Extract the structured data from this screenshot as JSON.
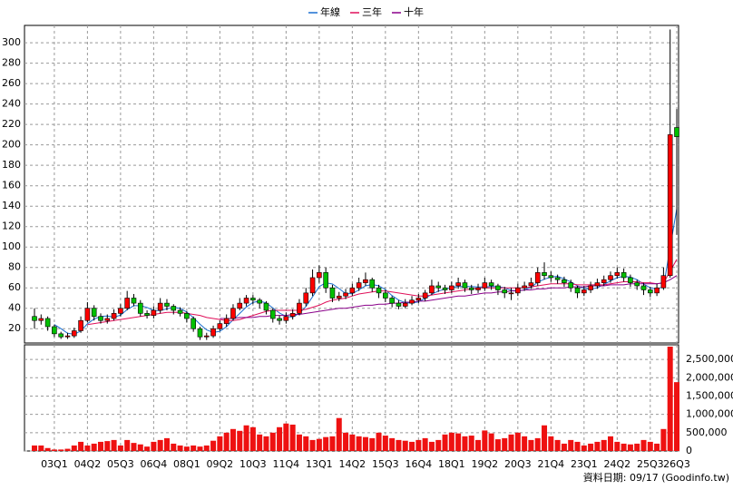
{
  "chart_data": {
    "type": "candlestick",
    "categories": [
      null,
      null,
      null,
      "03Q1",
      null,
      null,
      null,
      null,
      "04Q2",
      null,
      null,
      null,
      null,
      "05Q3",
      null,
      null,
      null,
      null,
      "06Q4",
      null,
      null,
      null,
      null,
      "08Q1",
      null,
      null,
      null,
      null,
      "09Q2",
      null,
      null,
      null,
      null,
      "10Q3",
      null,
      null,
      null,
      null,
      "11Q4",
      null,
      null,
      null,
      null,
      "13Q1",
      null,
      null,
      null,
      null,
      "14Q2",
      null,
      null,
      null,
      null,
      "15Q3",
      null,
      null,
      null,
      null,
      "16Q4",
      null,
      null,
      null,
      null,
      "18Q1",
      null,
      null,
      null,
      null,
      "19Q2",
      null,
      null,
      null,
      null,
      "20Q3",
      null,
      null,
      null,
      null,
      "21Q4",
      null,
      null,
      null,
      null,
      "23Q1",
      null,
      null,
      null,
      null,
      "24Q2",
      null,
      null,
      null,
      null,
      "25Q3",
      null,
      null,
      null,
      "26Q3"
    ],
    "open": [
      32,
      28,
      30,
      22,
      15,
      12,
      13,
      18,
      28,
      40,
      32,
      28,
      30,
      35,
      40,
      50,
      45,
      35,
      33,
      38,
      45,
      42,
      38,
      35,
      30,
      20,
      12,
      13,
      20,
      25,
      30,
      40,
      45,
      50,
      48,
      45,
      38,
      30,
      28,
      32,
      35,
      45,
      55,
      70,
      75,
      60,
      50,
      52,
      55,
      60,
      65,
      68,
      60,
      55,
      50,
      45,
      42,
      45,
      48,
      50,
      55,
      62,
      60,
      58,
      62,
      65,
      60,
      58,
      60,
      65,
      62,
      58,
      55,
      55,
      60,
      62,
      65,
      75,
      72,
      70,
      68,
      65,
      60,
      55,
      58,
      62,
      65,
      68,
      72,
      75,
      70,
      65,
      62,
      58,
      55,
      60,
      72,
      217
    ],
    "high": [
      40,
      34,
      32,
      24,
      17,
      16,
      21,
      32,
      46,
      43,
      35,
      34,
      39,
      44,
      57,
      54,
      48,
      38,
      42,
      50,
      49,
      44,
      41,
      37,
      32,
      22,
      16,
      23,
      28,
      34,
      44,
      50,
      53,
      53,
      50,
      47,
      40,
      33,
      36,
      39,
      49,
      60,
      78,
      82,
      80,
      63,
      56,
      59,
      64,
      70,
      75,
      70,
      63,
      58,
      52,
      48,
      49,
      52,
      54,
      58,
      68,
      66,
      63,
      66,
      70,
      68,
      63,
      64,
      70,
      68,
      64,
      61,
      60,
      64,
      66,
      70,
      80,
      85,
      76,
      73,
      71,
      68,
      62,
      62,
      66,
      69,
      72,
      76,
      80,
      79,
      73,
      68,
      65,
      61,
      64,
      80,
      313,
      235
    ],
    "low": [
      20,
      24,
      18,
      12,
      10,
      10,
      11,
      16,
      26,
      28,
      25,
      25,
      28,
      32,
      38,
      42,
      32,
      30,
      30,
      35,
      38,
      34,
      32,
      26,
      17,
      9,
      9,
      11,
      18,
      22,
      28,
      38,
      42,
      44,
      40,
      34,
      26,
      24,
      25,
      29,
      33,
      42,
      52,
      65,
      55,
      46,
      47,
      49,
      52,
      57,
      62,
      56,
      50,
      46,
      41,
      39,
      40,
      43,
      45,
      47,
      53,
      56,
      54,
      55,
      59,
      56,
      54,
      55,
      57,
      58,
      53,
      50,
      48,
      52,
      57,
      59,
      62,
      68,
      66,
      64,
      61,
      56,
      50,
      52,
      55,
      59,
      62,
      65,
      69,
      66,
      61,
      58,
      53,
      51,
      52,
      58,
      70,
      112
    ],
    "close": [
      28,
      30,
      22,
      15,
      12,
      13,
      18,
      28,
      40,
      32,
      28,
      30,
      35,
      40,
      50,
      45,
      35,
      33,
      38,
      45,
      42,
      38,
      35,
      30,
      20,
      12,
      13,
      20,
      25,
      30,
      40,
      45,
      50,
      48,
      45,
      38,
      30,
      28,
      32,
      35,
      45,
      55,
      70,
      75,
      60,
      50,
      52,
      55,
      60,
      65,
      68,
      60,
      55,
      50,
      45,
      42,
      45,
      48,
      50,
      55,
      62,
      60,
      58,
      62,
      65,
      60,
      58,
      60,
      65,
      62,
      58,
      55,
      55,
      60,
      62,
      65,
      75,
      72,
      70,
      68,
      65,
      60,
      55,
      58,
      62,
      65,
      68,
      72,
      75,
      70,
      65,
      62,
      58,
      55,
      60,
      72,
      210,
      208
    ],
    "up_color": "#ff0000",
    "down_color": "#00c000",
    "ylim": [
      6,
      317
    ],
    "yticks": [
      20,
      40,
      60,
      80,
      100,
      120,
      140,
      160,
      180,
      200,
      220,
      240,
      260,
      280,
      300
    ],
    "grid": true,
    "legend": "top",
    "series": [
      {
        "name": "年線",
        "color": "#1a6fd0",
        "values": [
          null,
          null,
          null,
          24,
          20,
          15.5,
          14.5,
          17.8,
          24.8,
          29.5,
          32,
          32.5,
          31.3,
          33.3,
          38.8,
          42.5,
          42.5,
          40.8,
          37.8,
          37.8,
          39.5,
          40.8,
          40,
          36.3,
          30.8,
          24.3,
          18.8,
          16.3,
          17.5,
          22,
          28.8,
          35,
          41.3,
          45.8,
          47,
          45.3,
          40.3,
          35.3,
          32,
          31.3,
          35,
          41.8,
          51.3,
          61.3,
          65,
          63.8,
          59.3,
          54.3,
          54.3,
          58,
          62,
          63.3,
          62,
          58.3,
          52.5,
          48,
          45.5,
          45,
          46.3,
          49.5,
          53.8,
          56.8,
          58.8,
          60.5,
          61.3,
          61.3,
          61.3,
          60.8,
          60.8,
          61.3,
          61.3,
          60,
          57.5,
          57,
          58,
          60.5,
          65.5,
          68.5,
          70.5,
          71.3,
          68.8,
          65.8,
          62,
          59.5,
          58.8,
          60,
          63.3,
          66.8,
          70,
          71.3,
          70.5,
          68,
          63.8,
          60,
          58.8,
          61.3,
          99.3,
          137.5
        ]
      },
      {
        "name": "三年",
        "color": "#e0105a",
        "values": [
          null,
          null,
          null,
          null,
          null,
          null,
          null,
          null,
          24,
          25,
          26,
          27,
          28,
          29,
          30,
          31,
          32,
          33,
          34,
          35,
          36,
          36,
          36,
          35,
          34,
          33,
          31,
          30,
          29,
          28,
          28,
          29,
          31,
          33,
          35,
          37,
          38,
          38,
          38,
          38,
          38,
          39,
          41,
          43,
          46,
          48,
          49,
          50,
          52,
          54,
          55,
          56,
          57,
          57,
          56,
          55,
          54,
          53,
          52,
          52,
          53,
          54,
          55,
          56,
          57,
          58,
          59,
          60,
          60,
          60,
          60,
          60,
          60,
          60,
          60,
          61,
          62,
          63,
          64,
          64,
          64,
          64,
          63,
          63,
          63,
          63,
          63,
          64,
          65,
          66,
          66,
          66,
          65,
          65,
          64,
          65,
          76,
          88
        ]
      },
      {
        "name": "十年",
        "color": "#8a008a",
        "values": [
          null,
          null,
          null,
          null,
          null,
          null,
          null,
          null,
          null,
          null,
          null,
          null,
          null,
          null,
          null,
          null,
          null,
          null,
          null,
          null,
          null,
          null,
          null,
          null,
          null,
          null,
          null,
          null,
          30,
          30,
          30,
          31,
          31,
          31,
          32,
          32,
          33,
          33,
          33,
          34,
          34,
          35,
          36,
          37,
          38,
          39,
          40,
          40,
          41,
          42,
          43,
          43,
          44,
          44,
          45,
          45,
          46,
          46,
          47,
          47,
          48,
          49,
          50,
          51,
          52,
          52,
          53,
          54,
          55,
          55,
          56,
          56,
          57,
          57,
          58,
          58,
          59,
          59,
          60,
          60,
          60,
          61,
          61,
          61,
          62,
          62,
          62,
          63,
          63,
          63,
          64,
          64,
          64,
          64,
          64,
          65,
          68,
          72
        ]
      }
    ],
    "volume": {
      "color": "#ee1111",
      "values": [
        150000,
        150000,
        80000,
        40000,
        40000,
        60000,
        150000,
        250000,
        150000,
        200000,
        250000,
        270000,
        300000,
        150000,
        300000,
        220000,
        180000,
        120000,
        250000,
        300000,
        350000,
        200000,
        150000,
        120000,
        150000,
        120000,
        150000,
        280000,
        400000,
        500000,
        600000,
        550000,
        700000,
        650000,
        450000,
        400000,
        500000,
        650000,
        750000,
        720000,
        450000,
        400000,
        300000,
        330000,
        380000,
        400000,
        900000,
        500000,
        450000,
        400000,
        380000,
        350000,
        500000,
        420000,
        350000,
        300000,
        280000,
        250000,
        300000,
        350000,
        250000,
        300000,
        450000,
        500000,
        480000,
        400000,
        420000,
        300000,
        560000,
        480000,
        320000,
        350000,
        450000,
        500000,
        400000,
        300000,
        350000,
        700000,
        400000,
        300000,
        200000,
        300000,
        250000,
        150000,
        200000,
        250000,
        300000,
        400000,
        250000,
        200000,
        180000,
        200000,
        300000,
        250000,
        200000,
        600000,
        2850000,
        1880000
      ],
      "ylim": [
        0,
        2900000
      ],
      "yticks": [
        {
          "value": 0,
          "label": "0"
        },
        {
          "value": 500000,
          "label": "500,000"
        },
        {
          "value": 1000000,
          "label": "1,000,000"
        },
        {
          "value": 1500000,
          "label": "1,500,000"
        },
        {
          "value": 2000000,
          "label": "2,000,000"
        },
        {
          "value": 2500000,
          "label": "2,500,000"
        }
      ]
    },
    "note": "資料日期: 09/17 (Goodinfo.tw)"
  }
}
